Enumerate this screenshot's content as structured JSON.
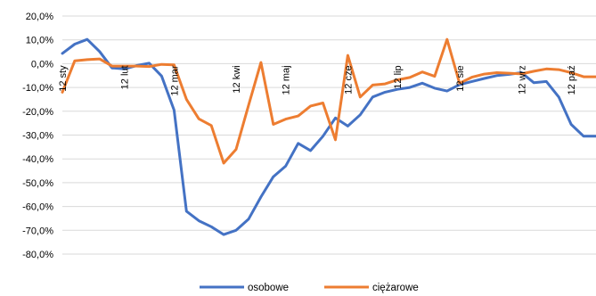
{
  "chart_data": {
    "type": "line",
    "title": "",
    "xlabel": "",
    "ylabel": "",
    "ylim": [
      -0.8,
      0.2
    ],
    "y_tick_values": [
      0.2,
      0.1,
      0.0,
      -0.1,
      -0.2,
      -0.3,
      -0.4,
      -0.5,
      -0.6,
      -0.7,
      -0.8
    ],
    "y_tick_labels": [
      "20,0%",
      "10,0%",
      "0,0%",
      "-10,0%",
      "-20,0%",
      "-30,0%",
      "-40,0%",
      "-50,0%",
      "-60,0%",
      "-70,0%",
      "-80,0%"
    ],
    "x_count": 44,
    "x_tick_labels": [
      {
        "index": 0,
        "label": "12 sty"
      },
      {
        "index": 5,
        "label": "12 lut"
      },
      {
        "index": 9,
        "label": "12 mar"
      },
      {
        "index": 14,
        "label": "12 kwi"
      },
      {
        "index": 18,
        "label": "12 maj"
      },
      {
        "index": 23,
        "label": "12 cze"
      },
      {
        "index": 27,
        "label": "12 lip"
      },
      {
        "index": 32,
        "label": "12 sie"
      },
      {
        "index": 37,
        "label": "12 wrz"
      },
      {
        "index": 41,
        "label": "12 paź"
      }
    ],
    "grid": true,
    "legend_position": "bottom",
    "series": [
      {
        "name": "osobowe",
        "color": "#4472c4",
        "values": [
          0.043,
          0.082,
          0.102,
          0.051,
          -0.018,
          -0.022,
          -0.008,
          0.002,
          -0.052,
          -0.195,
          -0.62,
          -0.66,
          -0.685,
          -0.718,
          -0.7,
          -0.653,
          -0.56,
          -0.475,
          -0.43,
          -0.335,
          -0.365,
          -0.305,
          -0.228,
          -0.262,
          -0.215,
          -0.14,
          -0.12,
          -0.108,
          -0.1,
          -0.082,
          -0.103,
          -0.115,
          -0.088,
          -0.075,
          -0.062,
          -0.05,
          -0.045,
          -0.038,
          -0.08,
          -0.075,
          -0.14,
          -0.255,
          -0.305,
          -0.305
        ]
      },
      {
        "name": "ciężarowe",
        "color": "#ed7d31",
        "values": [
          -0.12,
          0.012,
          0.017,
          0.02,
          -0.01,
          -0.01,
          -0.01,
          -0.012,
          -0.003,
          -0.005,
          -0.15,
          -0.232,
          -0.26,
          -0.418,
          -0.36,
          -0.175,
          0.005,
          -0.255,
          -0.233,
          -0.22,
          -0.178,
          -0.165,
          -0.32,
          0.035,
          -0.14,
          -0.09,
          -0.085,
          -0.068,
          -0.058,
          -0.035,
          -0.053,
          0.102,
          -0.082,
          -0.057,
          -0.044,
          -0.038,
          -0.04,
          -0.043,
          -0.032,
          -0.022,
          -0.025,
          -0.038,
          -0.055,
          -0.055
        ]
      }
    ]
  }
}
